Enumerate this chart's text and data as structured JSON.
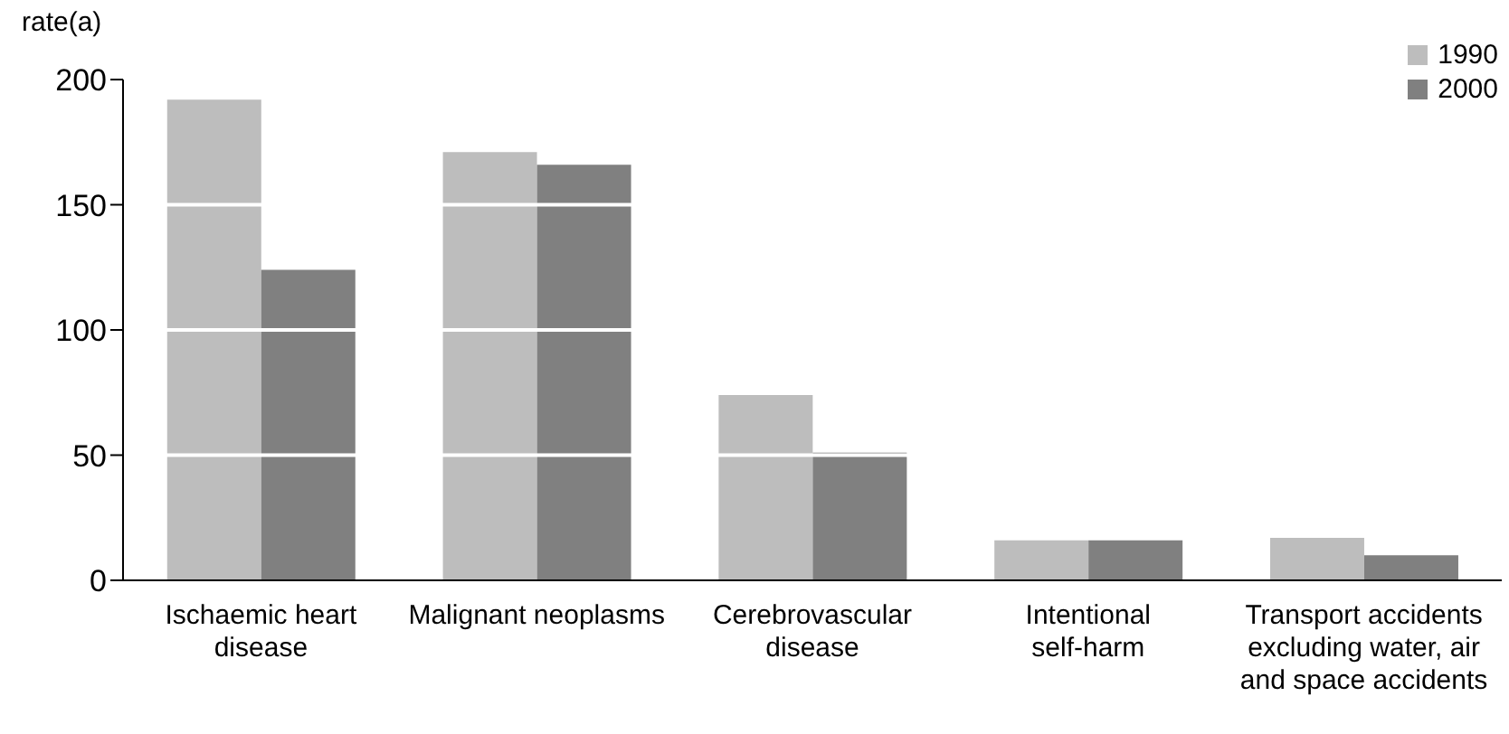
{
  "chart_data": {
    "type": "bar",
    "ylabel": "rate(a)",
    "categories": [
      "Ischaemic heart disease",
      "Malignant neoplasms",
      "Cerebrovascular disease",
      "Intentional self-harm",
      "Transport accidents excluding water, air and space accidents"
    ],
    "series": [
      {
        "name": "1990",
        "color": "#bdbdbd",
        "values": [
          192,
          171,
          74,
          16,
          17
        ]
      },
      {
        "name": "2000",
        "color": "#808080",
        "values": [
          124,
          166,
          51,
          16,
          10
        ]
      }
    ],
    "ylim": [
      0,
      200
    ],
    "yticks": [
      0,
      50,
      100,
      150,
      200
    ],
    "grid": "y",
    "legend": "top right"
  }
}
